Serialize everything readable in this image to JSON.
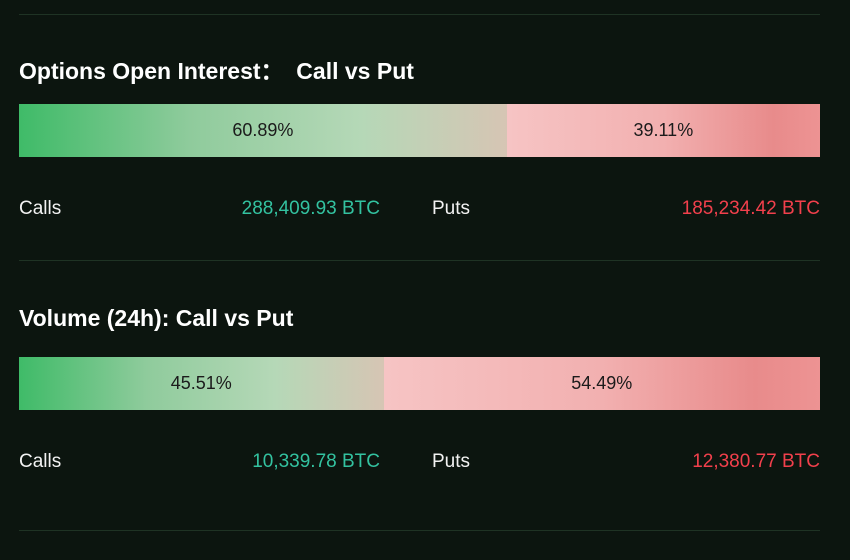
{
  "sections": [
    {
      "title": "Options Open Interest：  Call vs Put",
      "call_share": {
        "value": 60.89,
        "label": "60.89%"
      },
      "put_share": {
        "value": 39.11,
        "label": "39.11%"
      },
      "calls_label": "Calls",
      "calls_value": "288,409.93 BTC",
      "puts_label": "Puts",
      "puts_value": "185,234.42 BTC"
    },
    {
      "title": "Volume (24h): Call vs Put",
      "call_share": {
        "value": 45.51,
        "label": "45.51%"
      },
      "put_share": {
        "value": 54.49,
        "label": "54.49%"
      },
      "calls_label": "Calls",
      "calls_value": "10,339.78 BTC",
      "puts_label": "Puts",
      "puts_value": "12,380.77 BTC"
    }
  ]
}
